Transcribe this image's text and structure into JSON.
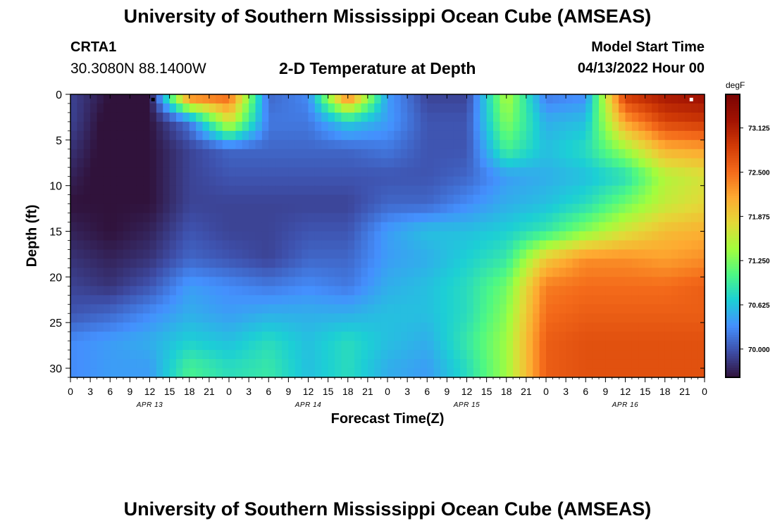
{
  "header": {
    "title": "University of Southern Mississippi Ocean Cube (AMSEAS)",
    "station": "CRTA1",
    "coords": "30.3080N  88.1400W",
    "chart_title": "2-D Temperature at Depth",
    "model_start_label": "Model Start Time",
    "model_start_value": "04/13/2022 Hour 00"
  },
  "footer": {
    "title": "University of Southern Mississippi Ocean Cube (AMSEAS)"
  },
  "chart_data": {
    "type": "heatmap",
    "title": "2-D Temperature at Depth",
    "xlabel": "Forecast Time(Z)",
    "ylabel": "Depth (ft)",
    "x_range_hours": [
      0,
      96
    ],
    "ylim": [
      0,
      31
    ],
    "y_ticks": [
      0,
      5,
      10,
      15,
      20,
      25,
      30
    ],
    "x_tick_labels": [
      "0",
      "3",
      "6",
      "9",
      "12",
      "15",
      "18",
      "21",
      "0",
      "3",
      "6",
      "9",
      "12",
      "15",
      "18",
      "21",
      "0",
      "3",
      "6",
      "9",
      "12",
      "15",
      "18",
      "21",
      "0",
      "3",
      "6",
      "9",
      "12",
      "15",
      "18",
      "21",
      "0"
    ],
    "date_labels": [
      "APR 13",
      "APR 14",
      "APR 15",
      "APR 16"
    ],
    "colorbar": {
      "unit": "degF",
      "ticks": [
        70.0,
        70.625,
        71.25,
        71.875,
        72.5,
        73.125
      ],
      "tick_labels": [
        "70.000",
        "70.625",
        "71.250",
        "71.875",
        "72.500",
        "73.125"
      ],
      "range": [
        69.6,
        73.6
      ],
      "palette": [
        "#30123b",
        "#3e4ea8",
        "#4490fe",
        "#1ccfd5",
        "#4df884",
        "#a3fd3d",
        "#e3d938",
        "#feaa31",
        "#f46a1a",
        "#d03a06",
        "#a11202",
        "#7a0403"
      ]
    },
    "depths_ft": [
      0,
      3,
      6,
      9,
      12,
      15,
      18,
      21,
      24,
      27,
      30
    ],
    "times_hours": [
      0,
      6,
      12,
      18,
      24,
      30,
      36,
      42,
      48,
      54,
      60,
      66,
      72,
      78,
      84,
      90,
      96
    ],
    "values_degF": [
      [
        69.9,
        69.6,
        69.6,
        72.6,
        72.6,
        70.1,
        70.3,
        72.6,
        70.4,
        69.9,
        69.9,
        71.5,
        70.2,
        70.3,
        72.9,
        73.2,
        73.3
      ],
      [
        69.9,
        69.5,
        69.6,
        70.2,
        71.7,
        70.2,
        70.2,
        70.7,
        70.4,
        70.0,
        70.0,
        71.3,
        70.5,
        70.6,
        72.2,
        72.8,
        72.9
      ],
      [
        69.8,
        69.5,
        69.6,
        69.9,
        70.1,
        70.1,
        70.1,
        70.1,
        70.2,
        70.0,
        70.0,
        71.0,
        70.6,
        70.8,
        71.4,
        72.1,
        72.2
      ],
      [
        69.7,
        69.5,
        69.6,
        69.9,
        70.0,
        70.0,
        70.0,
        70.0,
        70.0,
        70.0,
        70.1,
        70.4,
        70.5,
        70.6,
        70.8,
        71.5,
        71.7
      ],
      [
        69.6,
        69.6,
        69.6,
        69.9,
        69.9,
        69.9,
        69.9,
        69.9,
        70.1,
        70.1,
        70.3,
        70.5,
        70.6,
        70.8,
        71.2,
        71.6,
        71.8
      ],
      [
        69.7,
        69.6,
        69.7,
        70.0,
        69.9,
        69.9,
        70.0,
        70.0,
        70.4,
        70.6,
        70.6,
        70.7,
        70.9,
        71.3,
        71.7,
        72.0,
        72.1
      ],
      [
        69.8,
        69.7,
        69.8,
        70.1,
        70.0,
        69.9,
        70.1,
        70.1,
        70.4,
        70.5,
        70.7,
        70.9,
        71.9,
        72.3,
        72.3,
        72.2,
        72.3
      ],
      [
        69.9,
        69.8,
        70.0,
        70.4,
        70.3,
        70.2,
        70.3,
        70.2,
        70.5,
        70.6,
        70.8,
        71.2,
        72.4,
        72.5,
        72.5,
        72.5,
        72.6
      ],
      [
        70.0,
        70.1,
        70.3,
        70.5,
        70.4,
        70.5,
        70.5,
        70.5,
        70.6,
        70.6,
        70.8,
        71.3,
        72.5,
        72.6,
        72.6,
        72.6,
        72.6
      ],
      [
        70.3,
        70.4,
        70.5,
        70.7,
        70.6,
        70.8,
        70.6,
        70.8,
        70.6,
        70.5,
        70.9,
        71.4,
        72.6,
        72.7,
        72.7,
        72.7,
        72.7
      ],
      [
        70.3,
        70.4,
        70.4,
        71.0,
        70.8,
        70.9,
        70.6,
        70.8,
        70.5,
        70.4,
        70.8,
        71.4,
        72.6,
        72.7,
        72.7,
        72.7,
        72.7
      ]
    ],
    "markers": [
      {
        "time_h": 12.5,
        "depth_ft": 0.3,
        "color": "#000000"
      },
      {
        "time_h": 94.0,
        "depth_ft": 0.3,
        "color": "#ffffff"
      }
    ]
  }
}
